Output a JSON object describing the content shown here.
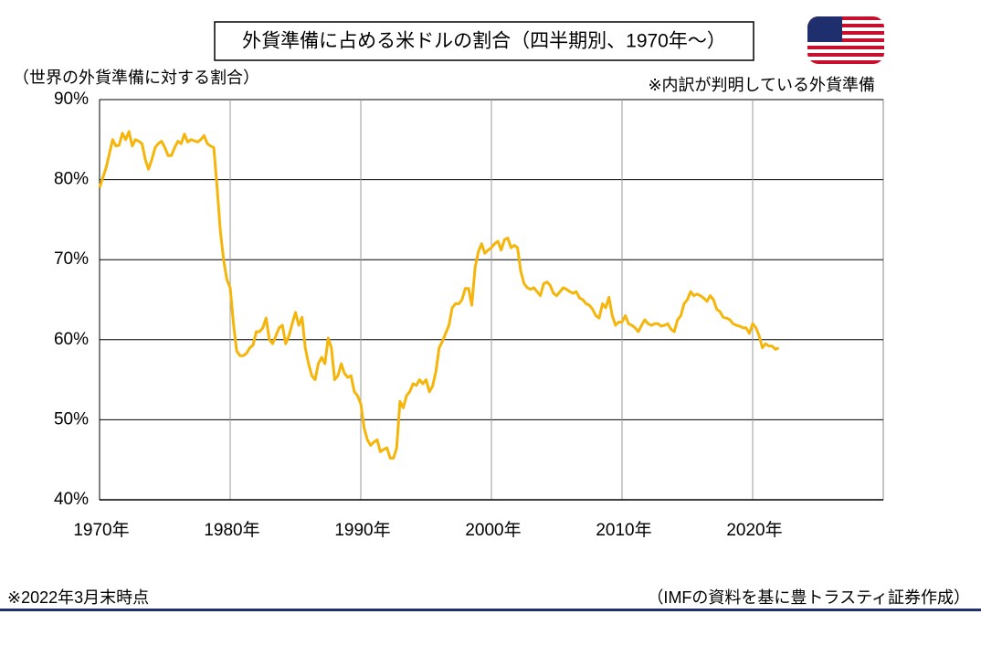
{
  "chart_data": {
    "type": "line",
    "title": "外貨準備に占める米ドルの割合（四半期別、1970年～）",
    "y_axis_label": "（世界の外貨準備に対する割合）",
    "annotation": "※内訳が判明している外貨準備",
    "footnote": "※2022年3月末時点",
    "source": "（IMFの資料を基に豊トラスティ証券作成）",
    "color": "#f5b50a",
    "grid": true,
    "xlim": [
      1970,
      2030
    ],
    "xticks": [
      {
        "value": 1970,
        "label": "1970年"
      },
      {
        "value": 1980,
        "label": "1980年"
      },
      {
        "value": 1990,
        "label": "1990年"
      },
      {
        "value": 2000,
        "label": "2000年"
      },
      {
        "value": 2010,
        "label": "2010年"
      },
      {
        "value": 2020,
        "label": "2020年"
      }
    ],
    "ylim": [
      40,
      90
    ],
    "yticks": [
      {
        "value": 40,
        "label": "40%"
      },
      {
        "value": 50,
        "label": "50%"
      },
      {
        "value": 60,
        "label": "60%"
      },
      {
        "value": 70,
        "label": "70%"
      },
      {
        "value": 80,
        "label": "80%"
      },
      {
        "value": 90,
        "label": "90%"
      }
    ],
    "x": [
      1970.0,
      1970.5,
      1971.0,
      1971.25,
      1971.5,
      1971.75,
      1972.0,
      1972.25,
      1972.5,
      1972.75,
      1973.0,
      1973.25,
      1973.5,
      1973.75,
      1974.0,
      1974.25,
      1974.5,
      1974.75,
      1975.0,
      1975.25,
      1975.5,
      1975.75,
      1976.0,
      1976.25,
      1976.5,
      1976.75,
      1977.0,
      1977.5,
      1977.75,
      1978.0,
      1978.25,
      1978.5,
      1978.75,
      1979.0,
      1979.25,
      1979.5,
      1979.75,
      1980.0,
      1980.25,
      1980.5,
      1980.75,
      1981.0,
      1981.25,
      1981.5,
      1981.75,
      1982.0,
      1982.25,
      1982.5,
      1982.75,
      1983.0,
      1983.25,
      1983.5,
      1983.75,
      1984.0,
      1984.25,
      1984.5,
      1984.75,
      1985.0,
      1985.25,
      1985.5,
      1985.75,
      1986.0,
      1986.25,
      1986.5,
      1986.75,
      1987.0,
      1987.25,
      1987.5,
      1987.75,
      1988.0,
      1988.25,
      1988.5,
      1988.75,
      1989.0,
      1989.25,
      1989.5,
      1989.75,
      1990.0,
      1990.25,
      1990.5,
      1990.75,
      1991.0,
      1991.25,
      1991.5,
      1991.75,
      1992.0,
      1992.25,
      1992.5,
      1992.75,
      1993.0,
      1993.25,
      1993.5,
      1993.75,
      1994.0,
      1994.25,
      1994.5,
      1994.75,
      1995.0,
      1995.25,
      1995.5,
      1995.75,
      1996.0,
      1996.25,
      1996.5,
      1996.75,
      1997.0,
      1997.25,
      1997.5,
      1997.75,
      1998.0,
      1998.25,
      1998.5,
      1998.75,
      1999.0,
      1999.25,
      1999.5,
      1999.75,
      2000.0,
      2000.25,
      2000.5,
      2000.75,
      2001.0,
      2001.25,
      2001.5,
      2001.75,
      2002.0,
      2002.25,
      2002.5,
      2002.75,
      2003.0,
      2003.25,
      2003.5,
      2003.75,
      2004.0,
      2004.25,
      2004.5,
      2004.75,
      2005.0,
      2005.25,
      2005.5,
      2005.75,
      2006.0,
      2006.25,
      2006.5,
      2006.75,
      2007.0,
      2007.25,
      2007.5,
      2007.75,
      2008.0,
      2008.25,
      2008.5,
      2008.75,
      2009.0,
      2009.25,
      2009.5,
      2009.75,
      2010.0,
      2010.25,
      2010.5,
      2010.75,
      2011.0,
      2011.25,
      2011.5,
      2011.75,
      2012.0,
      2012.25,
      2012.5,
      2012.75,
      2013.0,
      2013.25,
      2013.5,
      2013.75,
      2014.0,
      2014.25,
      2014.5,
      2014.75,
      2015.0,
      2015.25,
      2015.5,
      2015.75,
      2016.0,
      2016.25,
      2016.5,
      2016.75,
      2017.0,
      2017.25,
      2017.5,
      2017.75,
      2018.0,
      2018.25,
      2018.5,
      2018.75,
      2019.0,
      2019.25,
      2019.5,
      2019.75,
      2020.0,
      2020.25,
      2020.5,
      2020.75,
      2021.0,
      2021.25,
      2021.5,
      2021.75,
      2022.0
    ],
    "values": [
      79,
      81.5,
      85,
      84.2,
      84.3,
      85.8,
      85,
      86,
      84.2,
      85,
      84.8,
      84.5,
      82.5,
      81.3,
      82.5,
      84,
      84.5,
      84.8,
      84,
      83,
      83,
      84,
      84.8,
      84.5,
      85.7,
      84.7,
      85,
      84.7,
      85,
      85.5,
      84.5,
      84.2,
      84,
      79,
      73.5,
      70,
      67.5,
      66.5,
      62,
      58.6,
      58,
      58,
      58.3,
      59,
      59.3,
      61,
      61,
      61.5,
      62.7,
      60,
      59.5,
      60.5,
      61.5,
      61.8,
      59.5,
      60.5,
      62,
      63.4,
      61.8,
      62.8,
      59,
      57,
      55.5,
      55,
      57,
      57.8,
      57,
      60.2,
      59,
      55,
      55.5,
      57,
      55.8,
      55.3,
      55.5,
      53.5,
      53,
      52,
      49,
      47.5,
      46.8,
      47.2,
      47.5,
      46,
      46.3,
      46.5,
      45.2,
      45.2,
      46.5,
      52.3,
      51.5,
      53,
      53.5,
      54.5,
      54.3,
      55,
      54.5,
      55,
      53.5,
      54.2,
      56,
      59,
      59.8,
      60.8,
      61.8,
      64,
      64.5,
      64.5,
      65,
      66.4,
      66.4,
      64.3,
      69,
      71,
      72,
      70.8,
      71.2,
      71.5,
      72,
      72.3,
      71.2,
      72.5,
      72.7,
      71.5,
      71.8,
      71.5,
      68.5,
      67,
      66.5,
      66.3,
      66.5,
      66,
      65.5,
      67,
      67.2,
      66.8,
      65.8,
      65.5,
      66,
      66.5,
      66.3,
      66,
      65.8,
      66,
      65.2,
      65,
      64.5,
      64.3,
      63.8,
      63,
      62.7,
      64.5,
      64,
      65.3,
      63,
      61.8,
      62.2,
      62.2,
      63,
      62,
      61.8,
      61.5,
      61,
      61.8,
      62.5,
      62,
      61.8,
      62,
      62,
      61.7,
      61.8,
      62,
      61.3,
      61,
      62.5,
      63,
      64.5,
      65,
      66,
      65.5,
      65.7,
      65.5,
      65.2,
      64.8,
      65.5,
      65,
      63.8,
      63.5,
      62.8,
      62.7,
      62.5,
      62,
      61.8,
      61.7,
      61.5,
      61.5,
      60.8,
      62,
      61.5,
      60.5,
      59,
      59.5,
      59.2,
      59.2,
      58.8,
      59
    ]
  }
}
